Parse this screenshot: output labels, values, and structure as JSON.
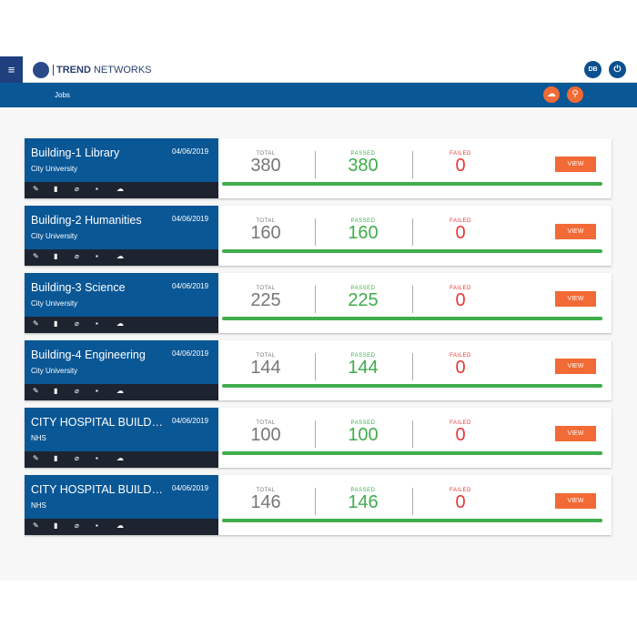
{
  "header": {
    "brand_bold": "TREND",
    "brand_rest": " NETWORKS",
    "user_initials": "DB",
    "section": "Jobs"
  },
  "icons": {
    "menu": "hamburger-icon",
    "power": "power-icon",
    "upload": "cloud-upload-icon",
    "search": "search-icon",
    "tools": [
      "pencil-icon",
      "document-icon",
      "paperclip-icon",
      "trash-icon",
      "cloud-upload-icon"
    ]
  },
  "colors": {
    "primary": "#0a5796",
    "accent": "#f26a35",
    "passed": "#3fad4b",
    "failed": "#e53935",
    "total": "#777777"
  },
  "labels": {
    "total": "TOTAL",
    "passed": "PASSED",
    "failed": "FAILED",
    "view": "VIEW"
  },
  "jobs": [
    {
      "name": "Building-1 Library",
      "date": "04/06/2019",
      "client": "City University",
      "total": "380",
      "passed": "380",
      "failed": "0",
      "progress": 100
    },
    {
      "name": "Building-2 Humanities",
      "date": "04/06/2019",
      "client": "City University",
      "total": "160",
      "passed": "160",
      "failed": "0",
      "progress": 100
    },
    {
      "name": "Building-3 Science",
      "date": "04/06/2019",
      "client": "City University",
      "total": "225",
      "passed": "225",
      "failed": "0",
      "progress": 100
    },
    {
      "name": "Building-4 Engineering",
      "date": "04/06/2019",
      "client": "City University",
      "total": "144",
      "passed": "144",
      "failed": "0",
      "progress": 100
    },
    {
      "name": "CITY HOSPITAL BUILDING",
      "date": "04/06/2019",
      "client": "NHS",
      "total": "100",
      "passed": "100",
      "failed": "0",
      "progress": 100
    },
    {
      "name": "CITY HOSPITAL BUILDING",
      "date": "04/06/2019",
      "client": "NHS",
      "total": "146",
      "passed": "146",
      "failed": "0",
      "progress": 100
    }
  ]
}
